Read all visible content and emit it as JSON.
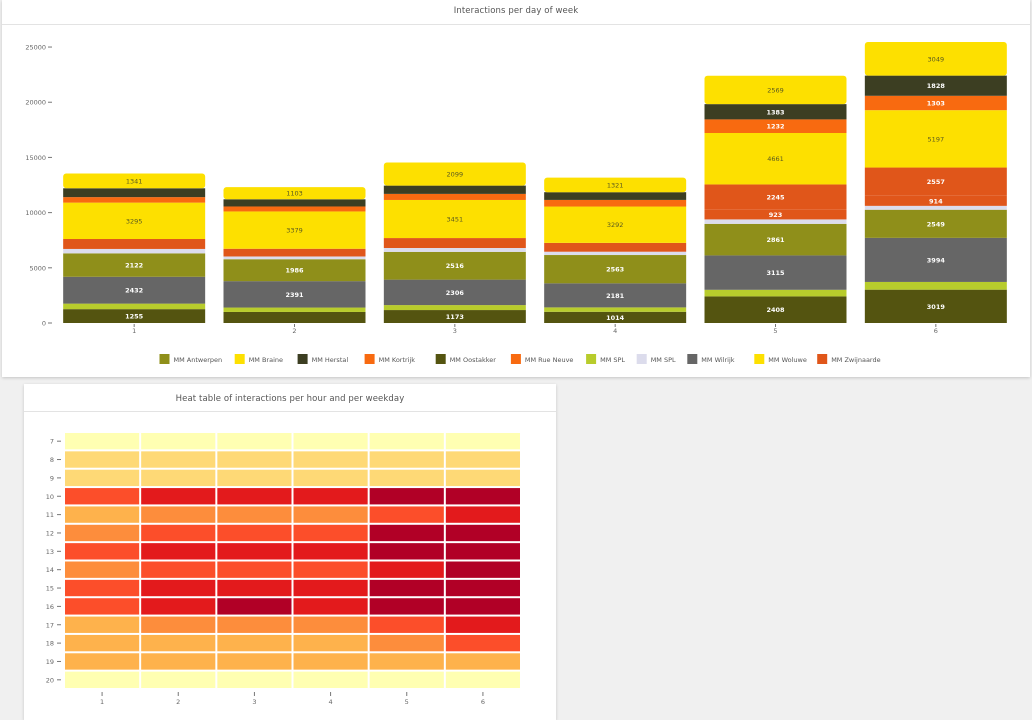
{
  "chart_data": [
    {
      "type": "bar",
      "stacked": true,
      "title": "Interactions per day of week",
      "xlabel": "",
      "ylabel": "",
      "categories": [
        "1",
        "2",
        "3",
        "4",
        "5",
        "6"
      ],
      "ylim": [
        0,
        26000
      ],
      "yticks": [
        0,
        5000,
        10000,
        15000,
        20000,
        25000
      ],
      "legend_position": "bottom",
      "series": [
        {
          "name": "MM Oostakker",
          "color": "#545410",
          "values": [
            1255,
            1000,
            1173,
            1014,
            2408,
            3019
          ]
        },
        {
          "name": "MM SPL",
          "color": "#b8cc2c",
          "values": [
            500,
            400,
            450,
            400,
            600,
            700
          ]
        },
        {
          "name": "MM Wilrijk",
          "color": "#666666",
          "values": [
            2432,
            2391,
            2306,
            2181,
            3115,
            3994
          ]
        },
        {
          "name": "MM Antwerpen",
          "color": "#8f8f1a",
          "values": [
            2122,
            1986,
            2516,
            2563,
            2861,
            2549
          ]
        },
        {
          "name": "MM SPL",
          "color": "#dcdcec",
          "values": [
            400,
            250,
            350,
            300,
            400,
            350
          ]
        },
        {
          "name": "MM Kortrijk",
          "color": "#e0561a",
          "values": [
            900,
            700,
            900,
            800,
            923,
            914
          ]
        },
        {
          "name": "MM Braine",
          "color": "#fde000",
          "values": [
            3295,
            3379,
            3451,
            3292,
            0,
            0
          ]
        },
        {
          "name": "MM Zwijnaarde",
          "color": "#e0561a",
          "values": [
            0,
            0,
            0,
            0,
            2245,
            2557
          ]
        },
        {
          "name": "MM Woluwe",
          "color": "#fde000",
          "values": [
            0,
            0,
            0,
            0,
            4661,
            5197
          ]
        },
        {
          "name": "MM Rue Neuve",
          "color": "#f86a10",
          "values": [
            500,
            450,
            550,
            600,
            1232,
            1303
          ]
        },
        {
          "name": "MM Herstal",
          "color": "#3c3e22",
          "values": [
            800,
            650,
            750,
            700,
            1383,
            1828
          ]
        },
        {
          "name": "MM Braine",
          "color": "#fde000",
          "values": [
            1341,
            1103,
            2099,
            1321,
            2569,
            3049
          ]
        }
      ],
      "data_labels": {
        "MM Oostakker": [
          1255,
          null,
          1173,
          1014,
          2408,
          3019
        ],
        "MM Wilrijk": [
          2432,
          2391,
          2306,
          2181,
          3115,
          3994
        ],
        "MM Antwerpen": [
          2122,
          1986,
          2516,
          2563,
          2861,
          2549
        ],
        "MM Kortrijk": [
          null,
          null,
          null,
          null,
          923,
          914
        ],
        "MM Braine": [
          3295,
          3379,
          3451,
          3292,
          null,
          null
        ],
        "MM Zwijnaarde": [
          null,
          null,
          null,
          null,
          2245,
          2557
        ],
        "MM Woluwe": [
          null,
          null,
          null,
          null,
          4661,
          5197
        ],
        "MM Rue Neuve": [
          null,
          null,
          null,
          null,
          1232,
          1303
        ],
        "MM Herstal": [
          null,
          null,
          null,
          null,
          1383,
          1828
        ],
        "MM Braine (top)": [
          1341,
          1103,
          2099,
          1321,
          2569,
          3049
        ]
      },
      "legend": [
        {
          "name": "MM Antwerpen",
          "color": "#8f8f1a"
        },
        {
          "name": "MM Braine",
          "color": "#fde000"
        },
        {
          "name": "MM Herstal",
          "color": "#3c3e22"
        },
        {
          "name": "MM Kortrijk",
          "color": "#f86a10"
        },
        {
          "name": "MM Oostakker",
          "color": "#545410"
        },
        {
          "name": "MM Rue Neuve",
          "color": "#f86a10"
        },
        {
          "name": "MM SPL",
          "color": "#b8cc2c"
        },
        {
          "name": "MM SPL",
          "color": "#dcdcec"
        },
        {
          "name": "MM Wilrijk",
          "color": "#666666"
        },
        {
          "name": "MM Woluwe",
          "color": "#fde000"
        },
        {
          "name": "MM Zwijnaarde",
          "color": "#e0561a"
        }
      ]
    },
    {
      "type": "heatmap",
      "title": "Heat table of interactions per hour and per weekday",
      "xlabel": "",
      "ylabel": "",
      "x": [
        "1",
        "2",
        "3",
        "4",
        "5",
        "6"
      ],
      "y": [
        "7",
        "8",
        "9",
        "10",
        "11",
        "12",
        "13",
        "14",
        "15",
        "16",
        "17",
        "18",
        "19",
        "20"
      ],
      "scale": "0 = low (pale yellow) to 6 = high (dark red)",
      "palette": [
        "#ffffb2",
        "#fed976",
        "#feb24c",
        "#fd8d3c",
        "#fc4e2a",
        "#e31a1c",
        "#b10026"
      ],
      "z": [
        [
          0,
          0,
          0,
          0,
          0,
          0
        ],
        [
          1,
          1,
          1,
          1,
          1,
          1
        ],
        [
          1,
          1,
          1,
          1,
          1,
          1
        ],
        [
          4,
          5,
          5,
          5,
          6,
          6
        ],
        [
          2,
          3,
          3,
          3,
          4,
          5
        ],
        [
          3,
          4,
          4,
          4,
          6,
          6
        ],
        [
          4,
          5,
          5,
          5,
          6,
          6
        ],
        [
          3,
          4,
          4,
          4,
          5,
          6
        ],
        [
          4,
          5,
          5,
          5,
          6,
          6
        ],
        [
          4,
          5,
          6,
          5,
          6,
          6
        ],
        [
          2,
          3,
          3,
          3,
          4,
          5
        ],
        [
          2,
          2,
          2,
          2,
          3,
          4
        ],
        [
          2,
          2,
          2,
          2,
          2,
          2
        ],
        [
          0,
          0,
          0,
          0,
          0,
          0
        ]
      ]
    }
  ]
}
